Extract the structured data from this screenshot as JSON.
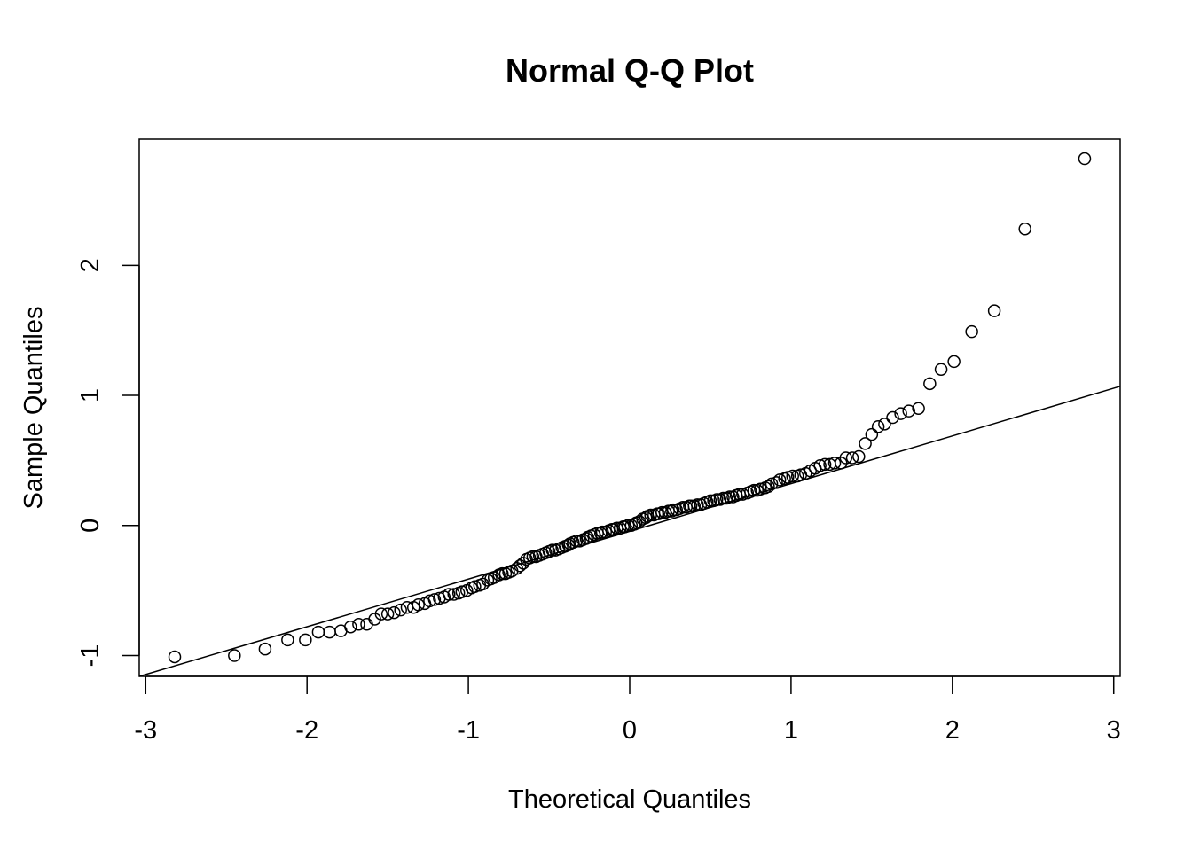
{
  "chart_data": {
    "type": "scatter",
    "title": "Normal Q-Q Plot",
    "xlabel": "Theoretical Quantiles",
    "ylabel": "Sample Quantiles",
    "xlim": [
      -3.04,
      3.04
    ],
    "ylim": [
      -1.16,
      2.97
    ],
    "x_ticks": [
      -3,
      -2,
      -1,
      0,
      1,
      2,
      3
    ],
    "y_ticks": [
      -1,
      0,
      1,
      2
    ],
    "grid": false,
    "reference_line": {
      "x1": -3.04,
      "y1": -1.16,
      "x2": 3.04,
      "y2": 1.07
    },
    "points": [
      [
        -2.82,
        -1.01
      ],
      [
        -2.45,
        -1.0
      ],
      [
        -2.26,
        -0.95
      ],
      [
        -2.12,
        -0.88
      ],
      [
        -2.01,
        -0.88
      ],
      [
        -1.93,
        -0.82
      ],
      [
        -1.86,
        -0.82
      ],
      [
        -1.79,
        -0.81
      ],
      [
        -1.73,
        -0.78
      ],
      [
        -1.68,
        -0.76
      ],
      [
        -1.63,
        -0.76
      ],
      [
        -1.58,
        -0.72
      ],
      [
        -1.54,
        -0.68
      ],
      [
        -1.5,
        -0.68
      ],
      [
        -1.46,
        -0.67
      ],
      [
        -1.42,
        -0.65
      ],
      [
        -1.38,
        -0.63
      ],
      [
        -1.34,
        -0.63
      ],
      [
        -1.31,
        -0.61
      ],
      [
        -1.27,
        -0.6
      ],
      [
        -1.24,
        -0.58
      ],
      [
        -1.21,
        -0.57
      ],
      [
        -1.18,
        -0.56
      ],
      [
        -1.15,
        -0.55
      ],
      [
        -1.12,
        -0.53
      ],
      [
        -1.09,
        -0.53
      ],
      [
        -1.06,
        -0.52
      ],
      [
        -1.04,
        -0.51
      ],
      [
        -1.01,
        -0.5
      ],
      [
        -0.98,
        -0.48
      ],
      [
        -0.96,
        -0.47
      ],
      [
        -0.93,
        -0.46
      ],
      [
        -0.91,
        -0.45
      ],
      [
        -0.88,
        -0.42
      ],
      [
        -0.86,
        -0.41
      ],
      [
        -0.84,
        -0.4
      ],
      [
        -0.81,
        -0.38
      ],
      [
        -0.79,
        -0.37
      ],
      [
        -0.77,
        -0.37
      ],
      [
        -0.75,
        -0.36
      ],
      [
        -0.73,
        -0.35
      ],
      [
        -0.7,
        -0.33
      ],
      [
        -0.68,
        -0.31
      ],
      [
        -0.66,
        -0.29
      ],
      [
        -0.64,
        -0.26
      ],
      [
        -0.62,
        -0.25
      ],
      [
        -0.6,
        -0.24
      ],
      [
        -0.58,
        -0.24
      ],
      [
        -0.56,
        -0.23
      ],
      [
        -0.54,
        -0.22
      ],
      [
        -0.52,
        -0.21
      ],
      [
        -0.5,
        -0.2
      ],
      [
        -0.48,
        -0.19
      ],
      [
        -0.46,
        -0.19
      ],
      [
        -0.44,
        -0.18
      ],
      [
        -0.42,
        -0.17
      ],
      [
        -0.4,
        -0.16
      ],
      [
        -0.38,
        -0.15
      ],
      [
        -0.37,
        -0.14
      ],
      [
        -0.35,
        -0.13
      ],
      [
        -0.33,
        -0.12
      ],
      [
        -0.31,
        -0.12
      ],
      [
        -0.29,
        -0.11
      ],
      [
        -0.27,
        -0.1
      ],
      [
        -0.26,
        -0.09
      ],
      [
        -0.24,
        -0.08
      ],
      [
        -0.22,
        -0.07
      ],
      [
        -0.2,
        -0.06
      ],
      [
        -0.18,
        -0.06
      ],
      [
        -0.17,
        -0.05
      ],
      [
        -0.15,
        -0.05
      ],
      [
        -0.13,
        -0.04
      ],
      [
        -0.11,
        -0.03
      ],
      [
        -0.1,
        -0.03
      ],
      [
        -0.08,
        -0.02
      ],
      [
        -0.06,
        -0.02
      ],
      [
        -0.04,
        -0.01
      ],
      [
        -0.03,
        -0.01
      ],
      [
        -0.01,
        0.0
      ],
      [
        0.01,
        0.0
      ],
      [
        0.03,
        0.01
      ],
      [
        0.04,
        0.02
      ],
      [
        0.06,
        0.03
      ],
      [
        0.08,
        0.05
      ],
      [
        0.1,
        0.06
      ],
      [
        0.11,
        0.07
      ],
      [
        0.13,
        0.08
      ],
      [
        0.15,
        0.08
      ],
      [
        0.17,
        0.09
      ],
      [
        0.18,
        0.09
      ],
      [
        0.2,
        0.1
      ],
      [
        0.22,
        0.1
      ],
      [
        0.24,
        0.11
      ],
      [
        0.26,
        0.11
      ],
      [
        0.27,
        0.12
      ],
      [
        0.29,
        0.12
      ],
      [
        0.31,
        0.13
      ],
      [
        0.33,
        0.14
      ],
      [
        0.35,
        0.14
      ],
      [
        0.37,
        0.15
      ],
      [
        0.38,
        0.15
      ],
      [
        0.4,
        0.15
      ],
      [
        0.42,
        0.16
      ],
      [
        0.44,
        0.16
      ],
      [
        0.46,
        0.17
      ],
      [
        0.48,
        0.18
      ],
      [
        0.5,
        0.19
      ],
      [
        0.52,
        0.19
      ],
      [
        0.54,
        0.2
      ],
      [
        0.56,
        0.2
      ],
      [
        0.58,
        0.21
      ],
      [
        0.6,
        0.21
      ],
      [
        0.62,
        0.22
      ],
      [
        0.64,
        0.22
      ],
      [
        0.66,
        0.23
      ],
      [
        0.68,
        0.24
      ],
      [
        0.7,
        0.24
      ],
      [
        0.73,
        0.25
      ],
      [
        0.75,
        0.26
      ],
      [
        0.77,
        0.27
      ],
      [
        0.79,
        0.27
      ],
      [
        0.81,
        0.28
      ],
      [
        0.84,
        0.29
      ],
      [
        0.86,
        0.3
      ],
      [
        0.88,
        0.32
      ],
      [
        0.91,
        0.33
      ],
      [
        0.93,
        0.35
      ],
      [
        0.96,
        0.36
      ],
      [
        0.98,
        0.37
      ],
      [
        1.01,
        0.38
      ],
      [
        1.04,
        0.38
      ],
      [
        1.06,
        0.39
      ],
      [
        1.09,
        0.4
      ],
      [
        1.12,
        0.42
      ],
      [
        1.15,
        0.44
      ],
      [
        1.18,
        0.46
      ],
      [
        1.21,
        0.47
      ],
      [
        1.24,
        0.47
      ],
      [
        1.27,
        0.48
      ],
      [
        1.31,
        0.48
      ],
      [
        1.34,
        0.52
      ],
      [
        1.38,
        0.52
      ],
      [
        1.42,
        0.53
      ],
      [
        1.46,
        0.63
      ],
      [
        1.5,
        0.7
      ],
      [
        1.54,
        0.76
      ],
      [
        1.58,
        0.78
      ],
      [
        1.63,
        0.83
      ],
      [
        1.68,
        0.86
      ],
      [
        1.73,
        0.88
      ],
      [
        1.79,
        0.9
      ],
      [
        1.86,
        1.09
      ],
      [
        1.93,
        1.2
      ],
      [
        2.01,
        1.26
      ],
      [
        2.12,
        1.49
      ],
      [
        2.26,
        1.65
      ],
      [
        2.45,
        2.28
      ],
      [
        2.82,
        2.82
      ]
    ]
  }
}
